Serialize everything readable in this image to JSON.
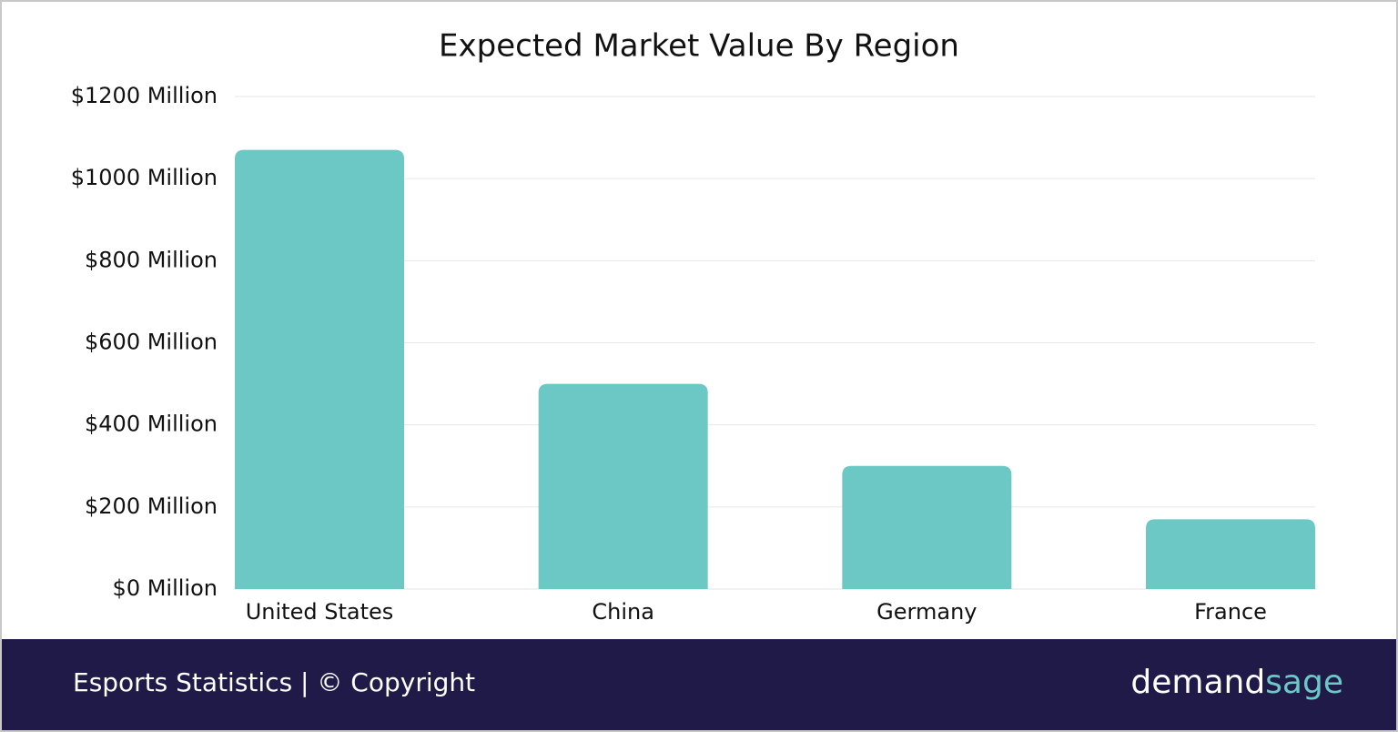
{
  "chart_data": {
    "type": "bar",
    "title": "Expected Market Value By Region",
    "categories": [
      "United States",
      "China",
      "Germany",
      "France"
    ],
    "values": [
      1070,
      500,
      300,
      170
    ],
    "color": "#6cc8c4",
    "ylim": [
      0,
      1200
    ],
    "yticks": [
      {
        "value": 0,
        "label": "$0 Million"
      },
      {
        "value": 200,
        "label": "$200 Million"
      },
      {
        "value": 400,
        "label": "$400 Million"
      },
      {
        "value": 600,
        "label": "$600 Million"
      },
      {
        "value": 800,
        "label": "$800 Million"
      },
      {
        "value": 1000,
        "label": "$1000 Million"
      },
      {
        "value": 1200,
        "label": "$1200 Million"
      }
    ],
    "grid": true
  },
  "footer": {
    "caption": "Esports Statistics | © Copyright",
    "brand_first": "demand",
    "brand_second": "sage"
  }
}
